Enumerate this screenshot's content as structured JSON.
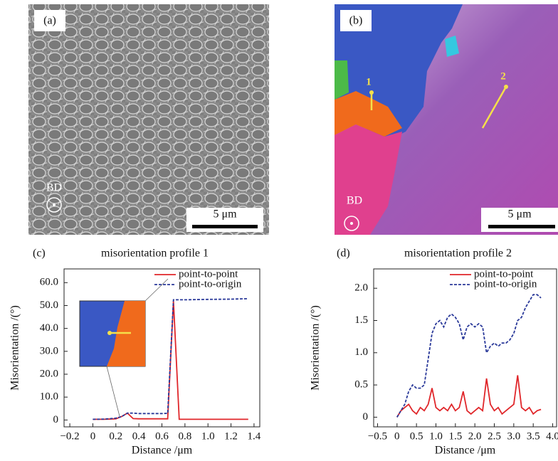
{
  "panels": [
    {
      "label": "(a)",
      "annotation": "BD",
      "scale_bar": "5 μm"
    },
    {
      "label": "(b)",
      "annotation": "BD",
      "scale_bar": "5 μm",
      "markers": [
        "1",
        "2"
      ]
    }
  ],
  "chart_data": [
    {
      "type": "line",
      "panel_label": "(c)",
      "title": "misorientation profile 1",
      "x_label": "Distance /μm",
      "y_label": "Misorientation /(°)",
      "x": [
        0,
        0.1,
        0.2,
        0.25,
        0.3,
        0.35,
        0.4,
        0.5,
        0.6,
        0.65,
        0.7,
        0.75,
        0.8,
        1.0,
        1.2,
        1.35
      ],
      "series": [
        {
          "name": "point-to-point",
          "color": "#e0262a",
          "dashed": false,
          "values": [
            0.3,
            0.3,
            0.5,
            1.5,
            3,
            0.6,
            0.5,
            0.5,
            0.5,
            0.5,
            52,
            0.3,
            0.3,
            0.3,
            0.3,
            0.3
          ]
        },
        {
          "name": "point-to-origin",
          "color": "#2b3a9a",
          "dashed": true,
          "values": [
            0.3,
            0.4,
            0.8,
            1.5,
            3,
            3,
            2.8,
            2.8,
            2.8,
            2.9,
            52.5,
            52.5,
            52.5,
            52.7,
            52.8,
            53
          ]
        }
      ],
      "xlim": [
        -0.25,
        1.45
      ],
      "xticks": [
        {
          "value": -0.2,
          "label": "−0.2"
        },
        0,
        0.2,
        0.4,
        0.6,
        0.8,
        {
          "value": 1,
          "label": "1.0"
        },
        1.2,
        1.4
      ],
      "ylim": [
        -3,
        66
      ],
      "yticks": [
        {
          "value": 0,
          "label": "0"
        },
        {
          "value": 10,
          "label": "10.0"
        },
        {
          "value": 20,
          "label": "20.0"
        },
        {
          "value": 30,
          "label": "30.0"
        },
        {
          "value": 40,
          "label": "40.0"
        },
        {
          "value": 50,
          "label": "50.0"
        },
        {
          "value": 60,
          "label": "60.0"
        }
      ]
    },
    {
      "type": "line",
      "panel_label": "(d)",
      "title": "misorientation profile 2",
      "x_label": "Distance /μm",
      "y_label": "Misorientation /(°)",
      "x": [
        0,
        0.1,
        0.2,
        0.3,
        0.4,
        0.5,
        0.6,
        0.7,
        0.8,
        0.9,
        1.0,
        1.1,
        1.2,
        1.3,
        1.4,
        1.5,
        1.6,
        1.7,
        1.8,
        1.9,
        2.0,
        2.1,
        2.2,
        2.3,
        2.4,
        2.5,
        2.6,
        2.7,
        2.8,
        2.9,
        3.0,
        3.1,
        3.2,
        3.3,
        3.4,
        3.5,
        3.6,
        3.7
      ],
      "series": [
        {
          "name": "point-to-point",
          "color": "#e0262a",
          "dashed": false,
          "values": [
            0,
            0.1,
            0.15,
            0.2,
            0.1,
            0.05,
            0.15,
            0.1,
            0.2,
            0.45,
            0.15,
            0.1,
            0.15,
            0.1,
            0.2,
            0.1,
            0.15,
            0.4,
            0.1,
            0.05,
            0.1,
            0.15,
            0.1,
            0.6,
            0.2,
            0.1,
            0.15,
            0.05,
            0.1,
            0.15,
            0.2,
            0.65,
            0.15,
            0.1,
            0.15,
            0.05,
            0.1,
            0.12
          ]
        },
        {
          "name": "point-to-origin",
          "color": "#2b3a9a",
          "dashed": true,
          "values": [
            0,
            0.1,
            0.2,
            0.4,
            0.5,
            0.45,
            0.45,
            0.5,
            0.9,
            1.3,
            1.45,
            1.5,
            1.4,
            1.55,
            1.6,
            1.55,
            1.45,
            1.2,
            1.4,
            1.45,
            1.4,
            1.45,
            1.4,
            1.0,
            1.1,
            1.15,
            1.1,
            1.15,
            1.15,
            1.2,
            1.3,
            1.5,
            1.55,
            1.7,
            1.8,
            1.9,
            1.9,
            1.85
          ]
        }
      ],
      "xlim": [
        -0.6,
        4.1
      ],
      "xticks": [
        {
          "value": -0.5,
          "label": "−0.5"
        },
        0,
        0.5,
        {
          "value": 1,
          "label": "1.0"
        },
        1.5,
        {
          "value": 2,
          "label": "2.0"
        },
        2.5,
        {
          "value": 3,
          "label": "3.0"
        },
        3.5,
        {
          "value": 4,
          "label": "4.0"
        }
      ],
      "ylim": [
        -0.15,
        2.3
      ],
      "yticks": [
        0,
        0.5,
        {
          "value": 1,
          "label": "1.0"
        },
        1.5,
        {
          "value": 2,
          "label": "2.0"
        }
      ]
    }
  ]
}
